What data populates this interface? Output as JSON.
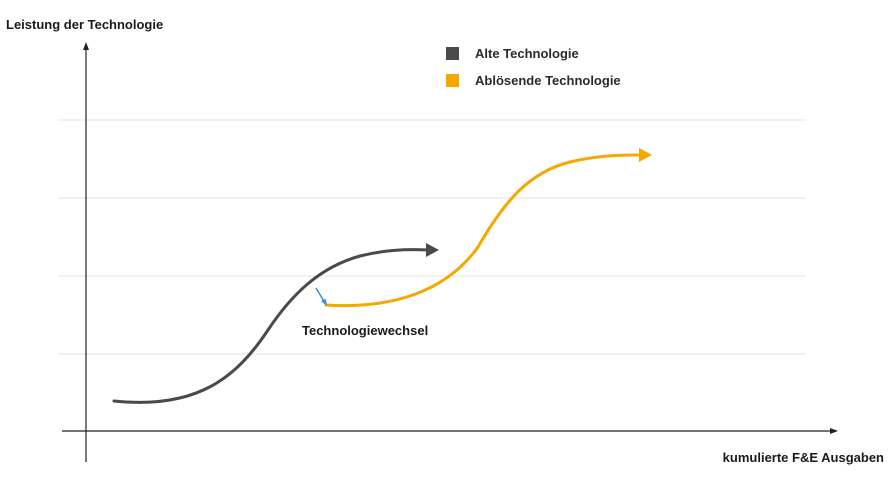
{
  "axes": {
    "y_label": "Leistung der Technologie",
    "x_label": "kumulierte F&E Ausgaben"
  },
  "legend": {
    "old": {
      "label": "Alte Technologie",
      "color": "#4a4a4a"
    },
    "new": {
      "label": "Ablösende Technologie",
      "color": "#f5a800"
    }
  },
  "annotation": {
    "switch_label": "Technologiewechsel",
    "color": "#3a8fd0"
  },
  "grid": {
    "visible": true,
    "color": "#e3e3e3"
  }
}
